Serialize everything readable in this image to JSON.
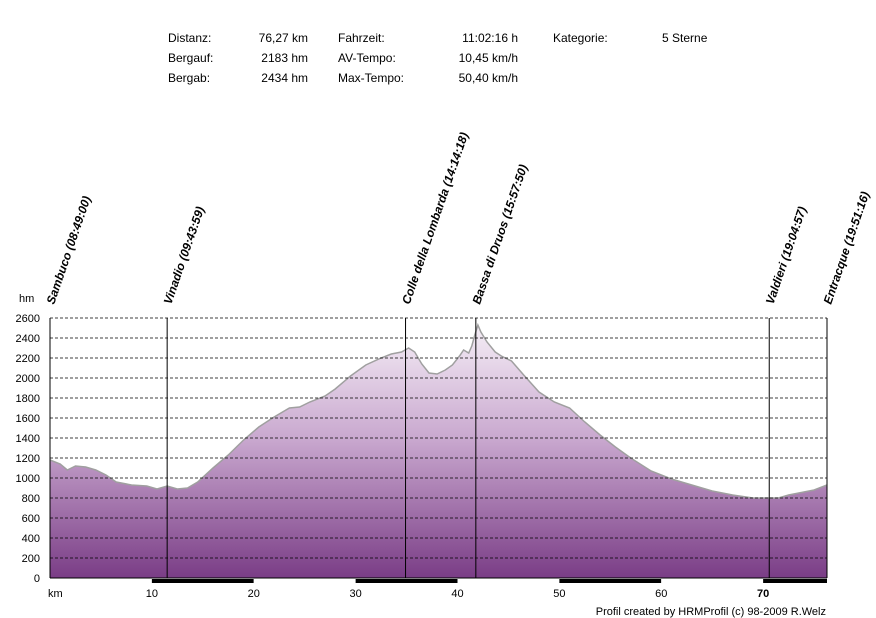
{
  "stats": {
    "distance_label": "Distanz:",
    "distance_value": "76,27 km",
    "ascent_label": "Bergauf:",
    "ascent_value": "2183 hm",
    "descent_label": "Bergab:",
    "descent_value": "2434 hm",
    "time_label": "Fahrzeit:",
    "time_value": "11:02:16 h",
    "avg_label": "AV-Tempo:",
    "avg_value": "10,45 km/h",
    "max_label": "Max-Tempo:",
    "max_value": "50,40 km/h",
    "category_label": "Kategorie:",
    "category_value": "5 Sterne"
  },
  "footer": {
    "credit": "Profil created by HRMProfil (c) 98-2009 R.Welz"
  },
  "chart_data": {
    "type": "area",
    "xlabel": "km",
    "ylabel": "hm",
    "xlim": [
      0,
      76.27
    ],
    "ylim": [
      0,
      2600
    ],
    "x_ticks": [
      10,
      20,
      30,
      40,
      50,
      60,
      70
    ],
    "x_tick_labels": [
      "10",
      "20",
      "30",
      "40",
      "50",
      "60",
      "70"
    ],
    "x_tick_bold": [
      false,
      false,
      false,
      false,
      false,
      false,
      true
    ],
    "y_ticks": [
      0,
      200,
      400,
      600,
      800,
      1000,
      1200,
      1400,
      1600,
      1800,
      2000,
      2200,
      2400,
      2600
    ],
    "grid": true,
    "fill_colors": {
      "top": "#f5eef6",
      "bottom": "#7a3d86"
    },
    "line_color": "#a0a0a0",
    "series": [
      {
        "x": [
          0,
          1,
          1.7,
          2.5,
          3.5,
          4.5,
          5.5,
          6.5,
          8,
          9.5,
          10.5,
          11.5,
          12.5,
          13.5,
          14.5,
          16,
          17.5,
          19,
          20.5,
          22,
          23.5,
          24.5,
          25.5,
          27,
          28,
          29.5,
          31,
          32.5,
          33.5,
          34.5,
          35.2,
          35.8,
          36.5,
          37.2,
          38,
          38.8,
          39.5,
          40.2,
          40.6,
          41.1,
          41.4,
          41.7,
          42,
          42.3,
          42.9,
          43.7,
          44.3,
          45.3,
          46.5,
          48,
          49.5,
          51,
          52.5,
          54,
          55.5,
          57,
          59,
          61,
          63,
          65,
          67,
          69,
          70.5,
          71.5,
          72.5,
          74,
          75,
          76.27
        ],
        "y": [
          1180,
          1140,
          1080,
          1120,
          1110,
          1080,
          1030,
          960,
          930,
          920,
          890,
          920,
          890,
          900,
          960,
          1100,
          1230,
          1380,
          1510,
          1610,
          1700,
          1710,
          1760,
          1820,
          1890,
          2020,
          2130,
          2200,
          2240,
          2260,
          2300,
          2260,
          2140,
          2050,
          2040,
          2080,
          2130,
          2220,
          2280,
          2250,
          2320,
          2430,
          2530,
          2460,
          2360,
          2260,
          2220,
          2170,
          2030,
          1860,
          1760,
          1700,
          1560,
          1430,
          1310,
          1200,
          1070,
          990,
          930,
          870,
          830,
          800,
          800,
          800,
          830,
          860,
          880,
          930
        ]
      }
    ],
    "waypoints": [
      {
        "label": "Sambuco (08:49:00)",
        "km": 0
      },
      {
        "label": "Vinadio (09:43:59)",
        "km": 11.5
      },
      {
        "label": "Colle della Lombarda (14:14:18)",
        "km": 34.9
      },
      {
        "label": "Bassa di Druos (15:57:50)",
        "km": 41.8
      },
      {
        "label": "Valdieri (19:04:57)",
        "km": 70.6
      },
      {
        "label": "Entracque (19:51:16)",
        "km": 76.27
      }
    ]
  }
}
